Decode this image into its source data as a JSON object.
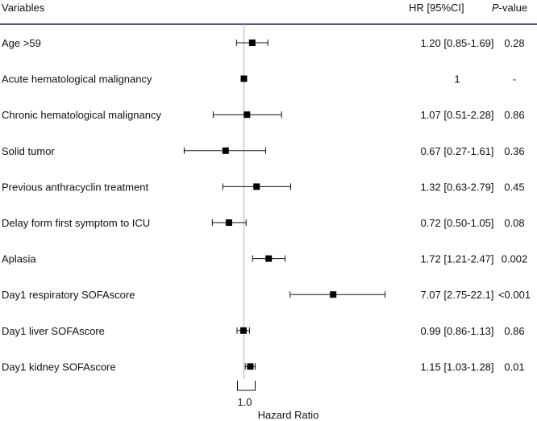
{
  "chart_data": {
    "type": "forest",
    "title": "",
    "headers": {
      "variables": "Variables",
      "hr": "HR [95%CI]",
      "p_italic": "P",
      "p_rest": "-value"
    },
    "rows": [
      {
        "label": "Age >59",
        "hr": 1.2,
        "lo": 0.85,
        "hi": 1.69,
        "hr_text": "1.20 [0.85-1.69]",
        "p": "0.28"
      },
      {
        "label": "Acute hematological malignancy",
        "hr": 1.0,
        "lo": null,
        "hi": null,
        "hr_text": "1",
        "p": "-"
      },
      {
        "label": "Chronic hematological malignancy",
        "hr": 1.07,
        "lo": 0.51,
        "hi": 2.28,
        "hr_text": "1.07 [0.51-2.28]",
        "p": "0.86"
      },
      {
        "label": "Solid tumor",
        "hr": 0.67,
        "lo": 0.27,
        "hi": 1.61,
        "hr_text": "0.67 [0.27-1.61]",
        "p": "0.36"
      },
      {
        "label": "Previous anthracyclin treatment",
        "hr": 1.32,
        "lo": 0.63,
        "hi": 2.79,
        "hr_text": "1.32 [0.63-2.79]",
        "p": "0.45"
      },
      {
        "label": "Delay form first symptom to ICU",
        "hr": 0.72,
        "lo": 0.5,
        "hi": 1.05,
        "hr_text": "0.72 [0.50-1.05]",
        "p": "0.08"
      },
      {
        "label": "Aplasia",
        "hr": 1.72,
        "lo": 1.21,
        "hi": 2.47,
        "hr_text": "1.72 [1.21-2.47]",
        "p": "0.002"
      },
      {
        "label": "Day1 respiratory SOFAscore",
        "hr": 7.07,
        "lo": 2.75,
        "hi": 22.1,
        "hr_text": "7.07 [2.75-22.1]",
        "p": "<0.001"
      },
      {
        "label": "Day1 liver SOFAscore",
        "hr": 0.99,
        "lo": 0.86,
        "hi": 1.13,
        "hr_text": "0.99 [0.86-1.13]",
        "p": "0.86"
      },
      {
        "label": "Day1 kidney SOFAscore",
        "hr": 1.15,
        "lo": 1.03,
        "hi": 1.28,
        "hr_text": "1.15 [1.03-1.28]",
        "p": "0.01"
      }
    ],
    "reference_value": 1.0,
    "x_scale": "log",
    "xlim": [
      0.2,
      25
    ],
    "x_tick_label": "1.0",
    "xlabel": "Hazard Ratio"
  }
}
